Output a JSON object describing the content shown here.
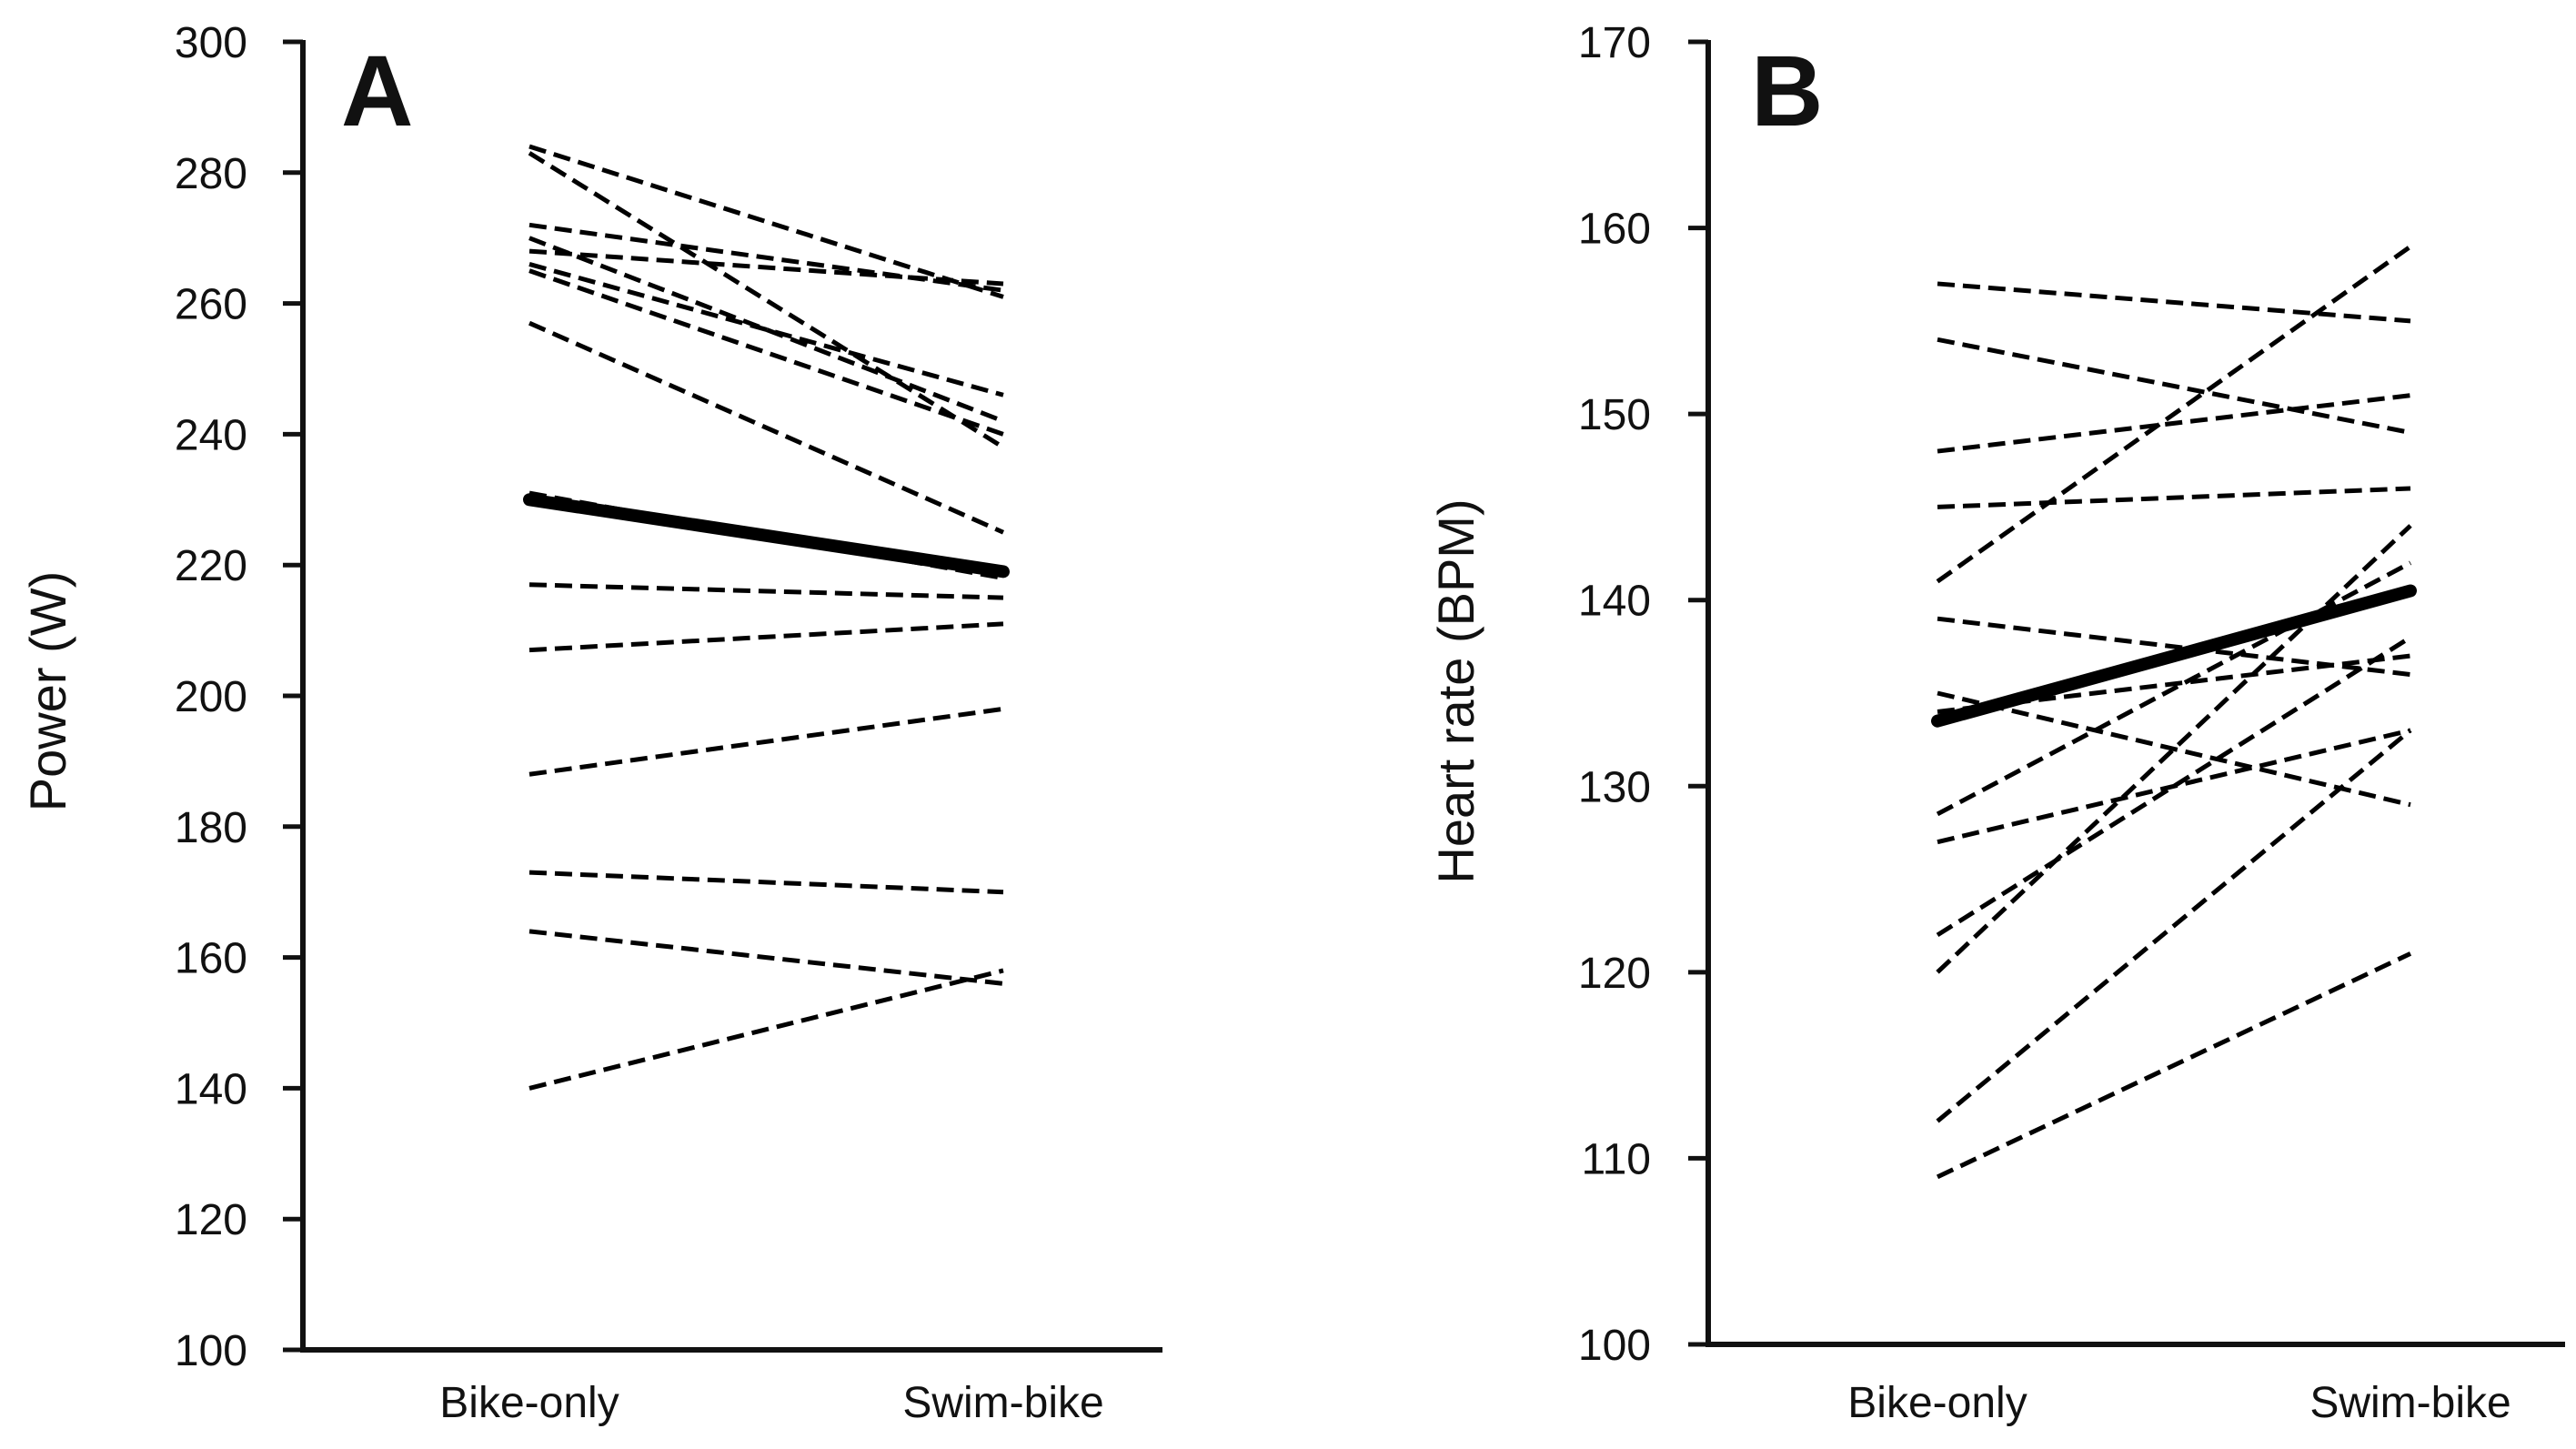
{
  "chart_data": [
    {
      "panel": "A",
      "type": "line",
      "ylabel": "Power (W)",
      "xlabel": "",
      "categories": [
        "Bike-only",
        "Swim-bike"
      ],
      "ylim": [
        100,
        300
      ],
      "yticks": [
        100,
        120,
        140,
        160,
        180,
        200,
        220,
        240,
        260,
        280,
        300
      ],
      "individual_series": [
        {
          "values": [
            284,
            261
          ]
        },
        {
          "values": [
            283,
            238
          ]
        },
        {
          "values": [
            272,
            262
          ]
        },
        {
          "values": [
            270,
            242
          ]
        },
        {
          "values": [
            268,
            263
          ]
        },
        {
          "values": [
            266,
            246
          ]
        },
        {
          "values": [
            265,
            240
          ]
        },
        {
          "values": [
            257,
            225
          ]
        },
        {
          "values": [
            231,
            218
          ]
        },
        {
          "values": [
            217,
            215
          ]
        },
        {
          "values": [
            207,
            211
          ]
        },
        {
          "values": [
            188,
            198
          ]
        },
        {
          "values": [
            173,
            170
          ]
        },
        {
          "values": [
            164,
            156
          ]
        },
        {
          "values": [
            140,
            158
          ]
        }
      ],
      "mean_series": {
        "values": [
          230,
          219
        ]
      },
      "line_color": "#000000"
    },
    {
      "panel": "B",
      "type": "line",
      "ylabel": "Heart rate (BPM)",
      "xlabel": "",
      "categories": [
        "Bike-only",
        "Swim-bike"
      ],
      "ylim": [
        100,
        170
      ],
      "yticks": [
        100,
        110,
        120,
        130,
        140,
        150,
        160,
        170
      ],
      "individual_series": [
        {
          "values": [
            157,
            155
          ]
        },
        {
          "values": [
            154,
            149
          ]
        },
        {
          "values": [
            148,
            151
          ]
        },
        {
          "values": [
            145,
            146
          ]
        },
        {
          "values": [
            141,
            159
          ]
        },
        {
          "values": [
            139,
            136
          ]
        },
        {
          "values": [
            135,
            129
          ]
        },
        {
          "values": [
            134,
            137
          ]
        },
        {
          "values": [
            128.5,
            142
          ]
        },
        {
          "values": [
            127,
            133
          ]
        },
        {
          "values": [
            122,
            138
          ]
        },
        {
          "values": [
            120,
            144
          ]
        },
        {
          "values": [
            112,
            133
          ]
        },
        {
          "values": [
            109,
            121
          ]
        }
      ],
      "mean_series": {
        "values": [
          133.5,
          140.5
        ]
      },
      "line_color": "#000000"
    }
  ]
}
